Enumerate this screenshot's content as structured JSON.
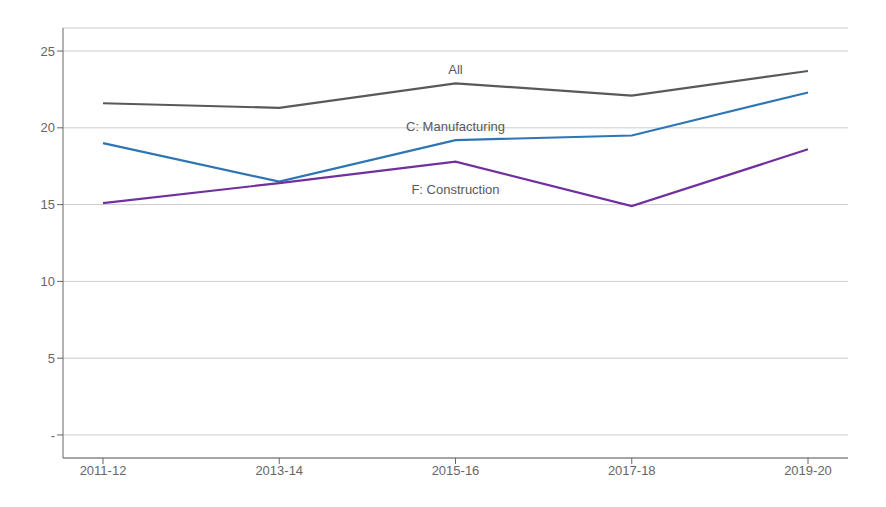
{
  "chart_data": {
    "type": "line",
    "categories": [
      "2011-12",
      "2013-14",
      "2015-16",
      "2017-18",
      "2019-20"
    ],
    "series": [
      {
        "name": "All",
        "color": "#595959",
        "values": [
          21.6,
          21.3,
          22.9,
          22.1,
          23.7
        ]
      },
      {
        "name": "C: Manufacturing",
        "color": "#2e75b6",
        "values": [
          19.0,
          16.5,
          19.2,
          19.5,
          22.3
        ]
      },
      {
        "name": "F: Construction",
        "color": "#7030a0",
        "values": [
          15.1,
          16.4,
          17.8,
          14.9,
          18.6
        ]
      }
    ],
    "ylim": [
      -1.5,
      26.5
    ],
    "yticks": [
      {
        "value": 0,
        "label": "-"
      },
      5,
      10,
      15,
      20,
      25
    ],
    "grid": true
  }
}
